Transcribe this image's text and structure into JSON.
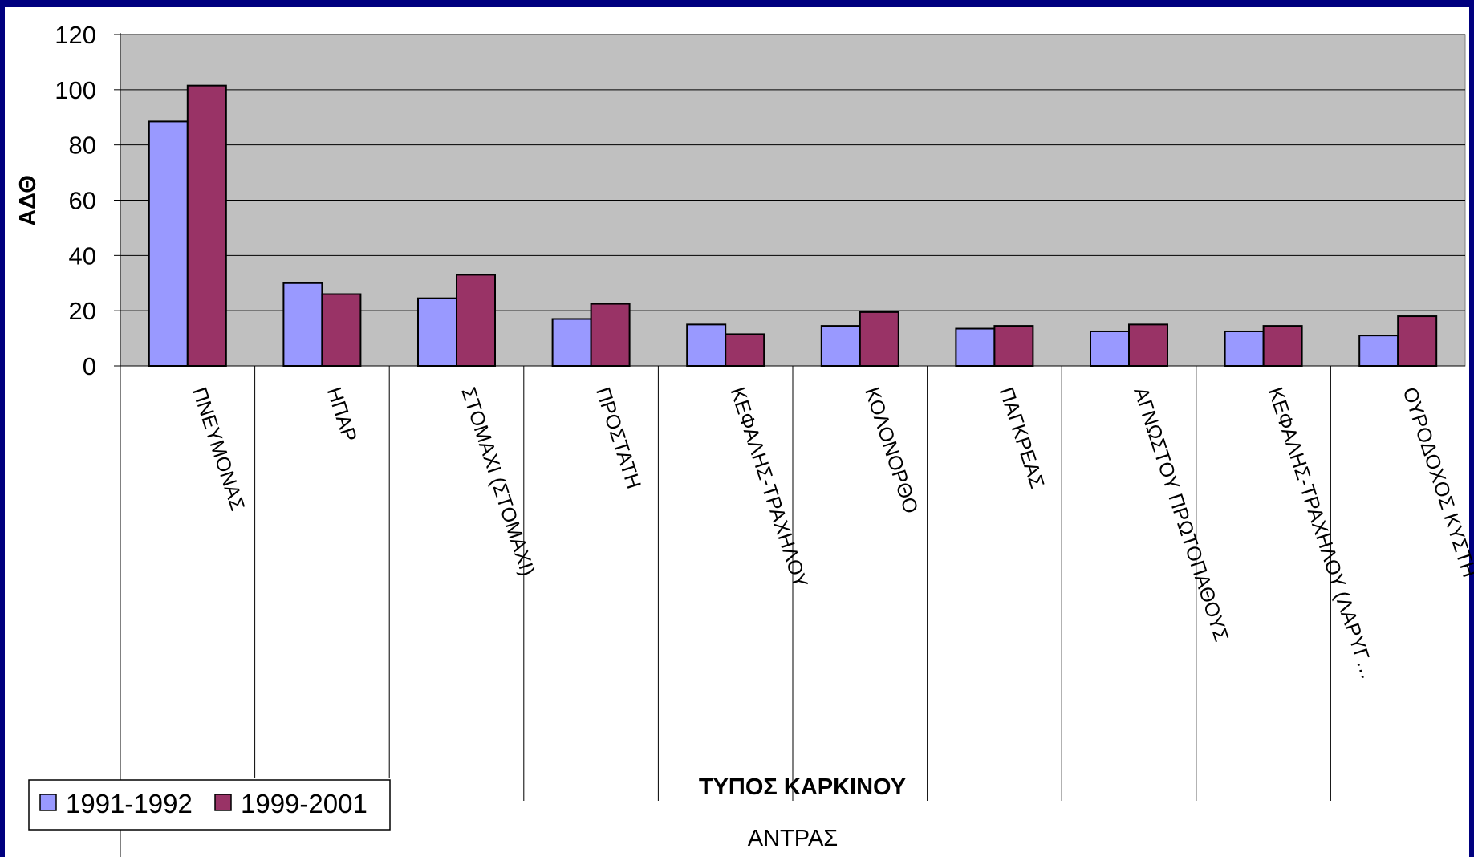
{
  "chart_data": {
    "type": "bar",
    "title": "",
    "ylabel": "ΑΔΘ",
    "xlabel": "ΤΥΠΟΣ ΚΑΡΚΙΝΟΥ",
    "sublabel": "ΑΝΤΡΑΣ",
    "ylim": [
      0,
      120
    ],
    "yticks": [
      "0",
      "20",
      "40",
      "60",
      "80",
      "100",
      "120"
    ],
    "grid": true,
    "legend_position": "bottom-left",
    "categories": [
      "ΠΝΕΥΜΟΝΑΣ",
      "ΗΠΑΡ",
      "ΣΤΟΜΑΧΙ (ΣΤΟΜΑΧΙ)",
      "ΠΡΟΣΤΑΤΗ",
      "ΚΕΦΑΛΗΣ-ΤΡΑΧΗΛΟΥ",
      "ΚΟΛΟΝΟΡΘΟ",
      "ΠΑΓΚΡΕΑΣ",
      "ΑΓΝΩΣΤΟΥ ΠΡΩΤΟΠΑΘΟΥΣ",
      "ΚΕΦΑΛΗΣ-ΤΡΑΧΗΛΟΥ (ΛΑΡΥΓ…",
      "ΟΥΡΟΔΟΧΟΣ ΚΥΣΤΗ"
    ],
    "series": [
      {
        "name": "1991-1992",
        "color": "#9999ff",
        "values": [
          88.5,
          30,
          24.5,
          17,
          15,
          14.5,
          13.5,
          12.5,
          12.5,
          11
        ]
      },
      {
        "name": "1999-2001",
        "color": "#993366",
        "values": [
          101.5,
          26,
          33,
          22.5,
          11.5,
          19.5,
          14.5,
          15,
          14.5,
          18
        ]
      }
    ]
  },
  "colors": {
    "background": "#00007f",
    "panel": "#ffffff",
    "plot_area": "#c0c0c0"
  }
}
